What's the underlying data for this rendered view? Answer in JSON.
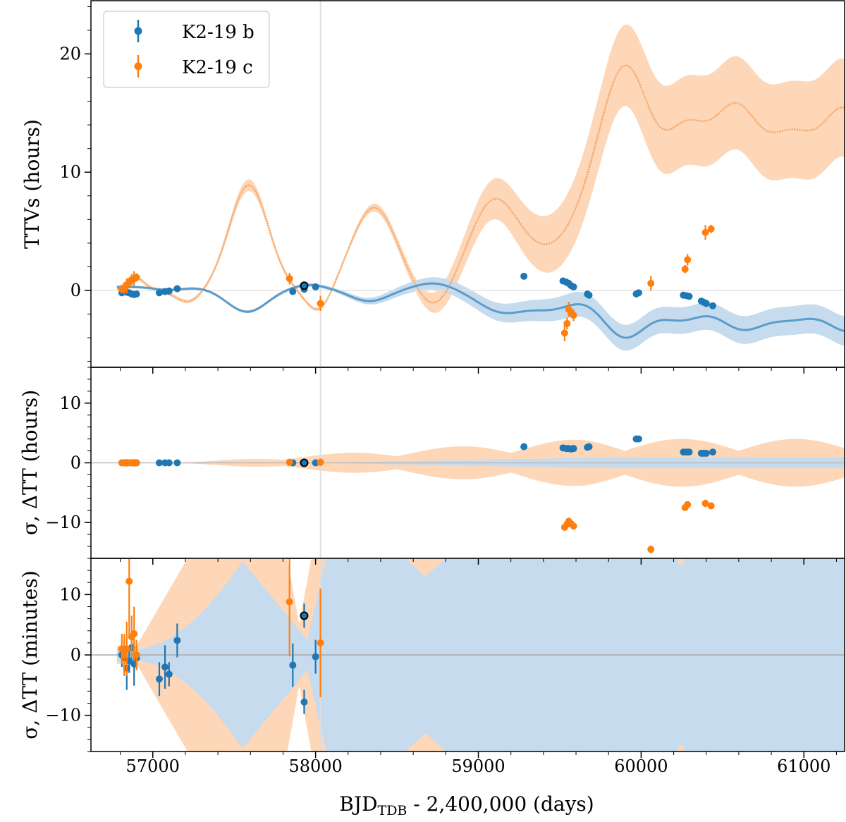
{
  "chart_data": {
    "type": "scatter",
    "xlabel": "BJD",
    "xlabel_sub": "TDB",
    "xlabel_rest": " - 2,400,000 (days)",
    "xlim": [
      56620,
      61250
    ],
    "xticks": [
      57000,
      58000,
      59000,
      60000,
      61000
    ],
    "xtick_labels": [
      "57000",
      "58000",
      "59000",
      "60000",
      "61000"
    ],
    "vline_x": 58030,
    "legend": {
      "placement": "top-left",
      "entries": [
        {
          "name": "K2-19 b",
          "color": "#1f77b4"
        },
        {
          "name": "K2-19 c",
          "color": "#ff7f0e"
        }
      ]
    },
    "colors": {
      "b": "#1f77b4",
      "c": "#ff7f0e",
      "b_band": "#c6dbed",
      "c_band": "#fdd7b8",
      "vline": "#dddddd",
      "hline": "#bbbbbb"
    },
    "panels": [
      {
        "id": "ttv",
        "ylabel": "TTVs (hours)",
        "ylim": [
          -6.5,
          24.5
        ],
        "yticks": [
          0,
          10,
          20
        ],
        "ytick_labels": [
          "0",
          "10",
          "20"
        ],
        "series": [
          {
            "name": "K2-19 b",
            "points": [
              [
                56810,
                -0.2
              ],
              [
                56825,
                -0.1
              ],
              [
                56840,
                -0.15
              ],
              [
                56855,
                -0.2
              ],
              [
                56870,
                -0.3
              ],
              [
                56885,
                -0.35
              ],
              [
                56900,
                -0.3
              ],
              [
                57040,
                -0.2
              ],
              [
                57075,
                -0.1
              ],
              [
                57100,
                -0.05
              ],
              [
                57150,
                0.15
              ],
              [
                57860,
                -0.1
              ],
              [
                57930,
                0.1
              ],
              [
                58000,
                0.3
              ],
              [
                59280,
                1.2
              ],
              [
                59520,
                0.8
              ],
              [
                59540,
                0.7
              ],
              [
                59555,
                0.6
              ],
              [
                59570,
                0.4
              ],
              [
                59585,
                0.3
              ],
              [
                59670,
                -0.3
              ],
              [
                59680,
                -0.4
              ],
              [
                59970,
                -0.3
              ],
              [
                59985,
                -0.2
              ],
              [
                60260,
                -0.4
              ],
              [
                60280,
                -0.45
              ],
              [
                60295,
                -0.5
              ],
              [
                60370,
                -0.9
              ],
              [
                60385,
                -1.0
              ],
              [
                60400,
                -1.1
              ],
              [
                60440,
                -1.3
              ]
            ]
          },
          {
            "name": "K2-19 c",
            "points": [
              [
                56810,
                0.1
              ],
              [
                56825,
                0.2
              ],
              [
                56840,
                0.4
              ],
              [
                56855,
                0.7
              ],
              [
                56870,
                0.9
              ],
              [
                56885,
                1.0
              ],
              [
                56900,
                1.1
              ],
              [
                57840,
                1.0
              ],
              [
                58030,
                -1.1
              ],
              [
                59530,
                -3.6
              ],
              [
                59545,
                -2.8
              ],
              [
                59555,
                -1.6
              ],
              [
                59570,
                -1.9
              ],
              [
                59585,
                -2.1
              ],
              [
                60060,
                0.6
              ],
              [
                60270,
                1.8
              ],
              [
                60285,
                2.6
              ],
              [
                60395,
                4.9
              ],
              [
                60430,
                5.2
              ]
            ]
          },
          {
            "name": "highlight",
            "points": [
              [
                57930,
                0.4
              ]
            ]
          }
        ]
      },
      {
        "id": "delta_hours",
        "ylabel": "σ, ΔTT (hours)",
        "ylim": [
          -16,
          16
        ],
        "yticks": [
          -10,
          0,
          10
        ],
        "ytick_labels": [
          "−10",
          "0",
          "10"
        ],
        "series": [
          {
            "name": "K2-19 b",
            "points": [
              [
                56810,
                0
              ],
              [
                56840,
                0
              ],
              [
                56870,
                0
              ],
              [
                56900,
                0
              ],
              [
                57040,
                0
              ],
              [
                57075,
                0
              ],
              [
                57100,
                0
              ],
              [
                57150,
                0
              ],
              [
                57860,
                0
              ],
              [
                57930,
                0
              ],
              [
                58000,
                0
              ],
              [
                59280,
                2.7
              ],
              [
                59520,
                2.5
              ],
              [
                59540,
                2.4
              ],
              [
                59555,
                2.4
              ],
              [
                59570,
                2.3
              ],
              [
                59585,
                2.4
              ],
              [
                59670,
                2.6
              ],
              [
                59680,
                2.7
              ],
              [
                59970,
                4.0
              ],
              [
                59985,
                4.0
              ],
              [
                60260,
                1.8
              ],
              [
                60280,
                1.8
              ],
              [
                60295,
                1.8
              ],
              [
                60370,
                1.6
              ],
              [
                60385,
                1.6
              ],
              [
                60400,
                1.6
              ],
              [
                60440,
                1.8
              ]
            ]
          },
          {
            "name": "K2-19 c",
            "points": [
              [
                56810,
                0
              ],
              [
                56825,
                0
              ],
              [
                56840,
                0
              ],
              [
                56855,
                0
              ],
              [
                56870,
                0
              ],
              [
                56885,
                0
              ],
              [
                56900,
                0
              ],
              [
                57840,
                0.1
              ],
              [
                58030,
                0.1
              ],
              [
                59530,
                -10.8
              ],
              [
                59545,
                -10.3
              ],
              [
                59555,
                -9.8
              ],
              [
                59570,
                -10.2
              ],
              [
                59585,
                -10.6
              ],
              [
                60060,
                -14.5
              ],
              [
                60270,
                -7.5
              ],
              [
                60285,
                -7.0
              ],
              [
                60395,
                -6.8
              ],
              [
                60430,
                -7.2
              ]
            ]
          },
          {
            "name": "highlight",
            "points": [
              [
                57930,
                0
              ]
            ]
          }
        ]
      },
      {
        "id": "delta_minutes",
        "ylabel": "σ, ΔTT (minutes)",
        "ylim": [
          -16,
          16
        ],
        "yticks": [
          -10,
          0,
          10
        ],
        "ytick_labels": [
          "−10",
          "0",
          "10"
        ],
        "series": [
          {
            "name": "K2-19 b",
            "points": [
              [
                56810,
                0
              ],
              [
                56825,
                -0.5
              ],
              [
                56840,
                -2.2
              ],
              [
                56855,
                -1.0
              ],
              [
                56870,
                1.2
              ],
              [
                56885,
                -1.5
              ],
              [
                56900,
                -0.5
              ],
              [
                57040,
                -4.0
              ],
              [
                57075,
                -2.0
              ],
              [
                57100,
                -3.2
              ],
              [
                57150,
                2.4
              ],
              [
                57860,
                -1.7
              ],
              [
                57930,
                -7.8
              ],
              [
                58000,
                -0.3
              ]
            ]
          },
          {
            "name": "K2-19 c",
            "points": [
              [
                56810,
                1.0
              ],
              [
                56825,
                0
              ],
              [
                56840,
                1.0
              ],
              [
                56855,
                12.2
              ],
              [
                56870,
                3.0
              ],
              [
                56885,
                3.5
              ],
              [
                56900,
                0
              ],
              [
                57840,
                8.8
              ],
              [
                58030,
                2.0
              ]
            ]
          },
          {
            "name": "highlight",
            "points": [
              [
                57930,
                6.5
              ]
            ]
          }
        ]
      }
    ]
  }
}
